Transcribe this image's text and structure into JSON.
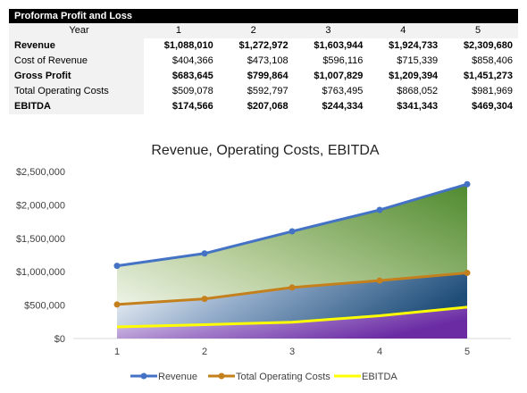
{
  "table": {
    "title": "Proforma Profit and Loss",
    "header_label": "Year",
    "years": [
      "1",
      "2",
      "3",
      "4",
      "5"
    ],
    "rows": [
      {
        "label": "Revenue",
        "bold": true,
        "values": [
          "$1,088,010",
          "$1,272,972",
          "$1,603,944",
          "$1,924,733",
          "$2,309,680"
        ]
      },
      {
        "label": "Cost of Revenue",
        "bold": false,
        "values": [
          "$404,366",
          "$473,108",
          "$596,116",
          "$715,339",
          "$858,406"
        ]
      },
      {
        "label": "Gross Profit",
        "bold": true,
        "values": [
          "$683,645",
          "$799,864",
          "$1,007,829",
          "$1,209,394",
          "$1,451,273"
        ]
      },
      {
        "label": "Total Operating Costs",
        "bold": false,
        "values": [
          "$509,078",
          "$592,797",
          "$763,495",
          "$868,052",
          "$981,969"
        ]
      },
      {
        "label": "EBITDA",
        "bold": true,
        "values": [
          "$174,566",
          "$207,068",
          "$244,334",
          "$341,343",
          "$469,304"
        ]
      }
    ]
  },
  "chart_data": {
    "type": "line",
    "title": "Revenue, Operating Costs, EBITDA",
    "xlabel": "",
    "ylabel": "",
    "x": [
      1,
      2,
      3,
      4,
      5
    ],
    "ylim": [
      0,
      2500000
    ],
    "yticks": [
      0,
      500000,
      1000000,
      1500000,
      2000000,
      2500000
    ],
    "ytick_labels": [
      "$0",
      "$500,000",
      "$1,000,000",
      "$1,500,000",
      "$2,000,000",
      "$2,500,000"
    ],
    "grid": false,
    "legend_position": "bottom",
    "series": [
      {
        "name": "Revenue",
        "color": "#4472c4",
        "marker": "circle",
        "values": [
          1088010,
          1272972,
          1603944,
          1924733,
          2309680
        ]
      },
      {
        "name": "Total Operating Costs",
        "color": "#c5801e",
        "marker": "circle",
        "values": [
          509078,
          592797,
          763495,
          868052,
          981969
        ]
      },
      {
        "name": "EBITDA",
        "color": "#ffff00",
        "marker": "none",
        "values": [
          174566,
          207068,
          244334,
          341343,
          469304
        ]
      }
    ]
  }
}
